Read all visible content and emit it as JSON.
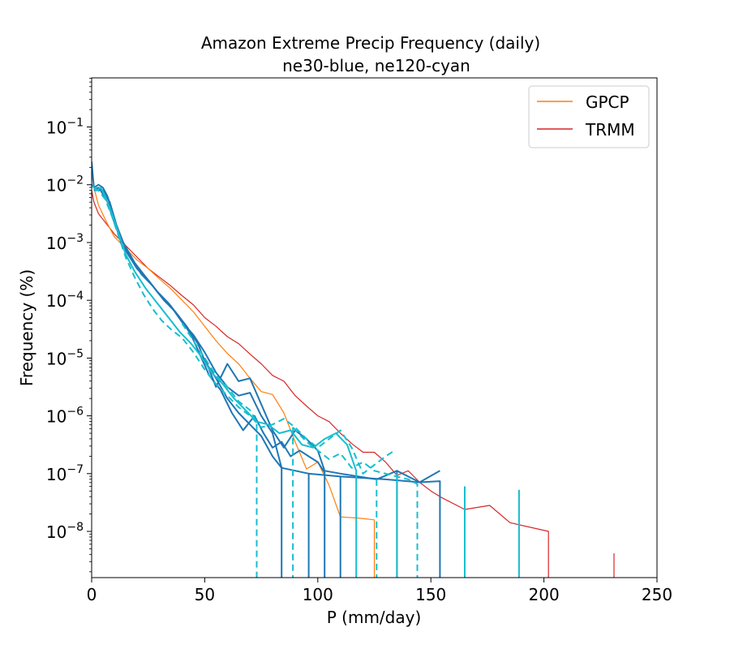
{
  "chart_data": {
    "type": "line",
    "title": [
      "Amazon Extreme Precip Frequency (daily)",
      "ne30-blue, ne120-cyan"
    ],
    "xlabel": "P (mm/day)",
    "ylabel": "Frequency (%)",
    "xlim": [
      0,
      250
    ],
    "ylim_log10": [
      -8.8,
      -0.15
    ],
    "yscale": "log",
    "xticks": [
      0,
      50,
      100,
      150,
      200,
      250
    ],
    "yticks": [
      {
        "base": "10",
        "exp": "−8",
        "log": -8
      },
      {
        "base": "10",
        "exp": "−7",
        "log": -7
      },
      {
        "base": "10",
        "exp": "−6",
        "log": -6
      },
      {
        "base": "10",
        "exp": "−5",
        "log": -5
      },
      {
        "base": "10",
        "exp": "−4",
        "log": -4
      },
      {
        "base": "10",
        "exp": "−3",
        "log": -3
      },
      {
        "base": "10",
        "exp": "−2",
        "log": -2
      },
      {
        "base": "10",
        "exp": "−1",
        "log": -1
      }
    ],
    "legend": {
      "position": "top-right",
      "entries": [
        {
          "label": "GPCP",
          "color": "#ff7f0e"
        },
        {
          "label": "TRMM",
          "color": "#d62728"
        }
      ]
    },
    "colors": {
      "GPCP": "#ff7f0e",
      "TRMM": "#d62728",
      "ne30": "#1f77b4",
      "ne120": "#17becf"
    },
    "series": [
      {
        "name": "TRMM",
        "color": "#d62728",
        "width": 1.2,
        "dash": "",
        "points": [
          [
            0,
            -2.1
          ],
          [
            1,
            -2.3
          ],
          [
            3,
            -2.5
          ],
          [
            6,
            -2.65
          ],
          [
            10,
            -2.85
          ],
          [
            15,
            -3.05
          ],
          [
            20,
            -3.25
          ],
          [
            25,
            -3.45
          ],
          [
            30,
            -3.6
          ],
          [
            35,
            -3.75
          ],
          [
            40,
            -3.92
          ],
          [
            45,
            -4.08
          ],
          [
            50,
            -4.3
          ],
          [
            55,
            -4.45
          ],
          [
            60,
            -4.63
          ],
          [
            65,
            -4.75
          ],
          [
            70,
            -4.93
          ],
          [
            75,
            -5.1
          ],
          [
            80,
            -5.3
          ],
          [
            85,
            -5.4
          ],
          [
            90,
            -5.65
          ],
          [
            95,
            -5.83
          ],
          [
            100,
            -6.0
          ],
          [
            105,
            -6.1
          ],
          [
            110,
            -6.3
          ],
          [
            115,
            -6.48
          ],
          [
            120,
            -6.63
          ],
          [
            125,
            -6.63
          ],
          [
            130,
            -6.8
          ],
          [
            135,
            -7.03
          ],
          [
            140,
            -6.95
          ],
          [
            145,
            -7.15
          ],
          [
            150,
            -7.3
          ],
          [
            155,
            -7.42
          ],
          [
            165,
            -7.62
          ],
          [
            176,
            -7.55
          ],
          [
            185,
            -7.85
          ],
          [
            202,
            -8.0
          ],
          [
            202,
            -8.8
          ]
        ]
      },
      {
        "name": "TRMM-tail",
        "color": "#d62728",
        "width": 1.2,
        "dash": "",
        "points": [
          [
            231,
            -8.38
          ],
          [
            231,
            -8.8
          ]
        ]
      },
      {
        "name": "GPCP",
        "color": "#ff7f0e",
        "width": 1.2,
        "dash": "",
        "points": [
          [
            0,
            -1.8
          ],
          [
            1,
            -2.05
          ],
          [
            3,
            -2.35
          ],
          [
            6,
            -2.6
          ],
          [
            10,
            -2.9
          ],
          [
            15,
            -3.1
          ],
          [
            20,
            -3.3
          ],
          [
            25,
            -3.45
          ],
          [
            30,
            -3.63
          ],
          [
            35,
            -3.8
          ],
          [
            40,
            -4.0
          ],
          [
            45,
            -4.2
          ],
          [
            50,
            -4.45
          ],
          [
            55,
            -4.7
          ],
          [
            60,
            -4.92
          ],
          [
            65,
            -5.1
          ],
          [
            70,
            -5.35
          ],
          [
            75,
            -5.58
          ],
          [
            80,
            -5.63
          ],
          [
            85,
            -5.95
          ],
          [
            90,
            -6.45
          ],
          [
            95,
            -6.92
          ],
          [
            100,
            -6.8
          ],
          [
            105,
            -7.2
          ],
          [
            110,
            -7.75
          ],
          [
            118,
            -7.77
          ],
          [
            125,
            -7.8
          ],
          [
            125,
            -8.8
          ]
        ]
      },
      {
        "name": "ne30-a",
        "color": "#1f77b4",
        "width": 2,
        "dash": "",
        "points": [
          [
            0,
            -1.6
          ],
          [
            1,
            -2.05
          ],
          [
            3,
            -2.0
          ],
          [
            5,
            -2.05
          ],
          [
            7,
            -2.2
          ],
          [
            9,
            -2.45
          ],
          [
            11,
            -2.75
          ],
          [
            13,
            -3.0
          ],
          [
            16,
            -3.2
          ],
          [
            20,
            -3.45
          ],
          [
            25,
            -3.65
          ],
          [
            30,
            -3.9
          ],
          [
            35,
            -4.1
          ],
          [
            40,
            -4.38
          ],
          [
            45,
            -4.6
          ],
          [
            50,
            -4.9
          ],
          [
            55,
            -5.25
          ],
          [
            60,
            -5.5
          ],
          [
            65,
            -5.65
          ],
          [
            70,
            -5.6
          ],
          [
            75,
            -6.0
          ],
          [
            80,
            -6.3
          ],
          [
            84,
            -6.9
          ],
          [
            84,
            -8.8
          ]
        ]
      },
      {
        "name": "ne30-b",
        "color": "#1f77b4",
        "width": 2,
        "dash": "",
        "points": [
          [
            1,
            -2.1
          ],
          [
            3,
            -2.05
          ],
          [
            5,
            -2.1
          ],
          [
            8,
            -2.3
          ],
          [
            11,
            -2.7
          ],
          [
            14,
            -3.0
          ],
          [
            18,
            -3.3
          ],
          [
            22,
            -3.55
          ],
          [
            27,
            -3.75
          ],
          [
            32,
            -4.0
          ],
          [
            37,
            -4.2
          ],
          [
            42,
            -4.45
          ],
          [
            47,
            -4.75
          ],
          [
            50,
            -5.05
          ],
          [
            55,
            -5.35
          ],
          [
            60,
            -5.7
          ],
          [
            65,
            -5.95
          ],
          [
            70,
            -6.15
          ],
          [
            75,
            -6.35
          ],
          [
            80,
            -6.7
          ],
          [
            84,
            -6.9
          ],
          [
            96,
            -7.0
          ],
          [
            110,
            -7.05
          ],
          [
            130,
            -7.1
          ],
          [
            145,
            -7.15
          ],
          [
            154,
            -7.13
          ],
          [
            154,
            -8.8
          ]
        ]
      },
      {
        "name": "ne30-c",
        "color": "#1f77b4",
        "width": 2,
        "dash": "",
        "points": [
          [
            2,
            -2.05
          ],
          [
            4,
            -2.1
          ],
          [
            7,
            -2.3
          ],
          [
            10,
            -2.65
          ],
          [
            14,
            -3.0
          ],
          [
            19,
            -3.35
          ],
          [
            24,
            -3.6
          ],
          [
            29,
            -3.85
          ],
          [
            34,
            -4.05
          ],
          [
            39,
            -4.3
          ],
          [
            44,
            -4.6
          ],
          [
            48,
            -4.95
          ],
          [
            52,
            -5.3
          ],
          [
            57,
            -5.55
          ],
          [
            62,
            -5.95
          ],
          [
            67,
            -6.25
          ],
          [
            72,
            -6.0
          ],
          [
            76,
            -6.3
          ],
          [
            80,
            -6.55
          ],
          [
            84,
            -6.45
          ],
          [
            88,
            -6.7
          ],
          [
            92,
            -6.6
          ],
          [
            96,
            -6.7
          ],
          [
            100,
            -6.8
          ],
          [
            103,
            -6.98
          ],
          [
            103,
            -8.8
          ]
        ]
      },
      {
        "name": "ne30-d",
        "color": "#1f77b4",
        "width": 2,
        "dash": "",
        "points": [
          [
            50,
            -5.0
          ],
          [
            55,
            -5.5
          ],
          [
            60,
            -5.1
          ],
          [
            65,
            -5.4
          ],
          [
            70,
            -5.35
          ],
          [
            75,
            -5.8
          ],
          [
            80,
            -6.25
          ],
          [
            85,
            -6.55
          ],
          [
            90,
            -6.25
          ],
          [
            95,
            -6.4
          ],
          [
            100,
            -6.6
          ],
          [
            103,
            -6.95
          ],
          [
            110,
            -7.0
          ],
          [
            118,
            -7.05
          ],
          [
            126,
            -7.1
          ],
          [
            135,
            -6.95
          ],
          [
            140,
            -7.05
          ],
          [
            145,
            -7.15
          ],
          [
            154,
            -6.95
          ]
        ]
      },
      {
        "name": "ne30-drops",
        "color": "#1f77b4",
        "width": 2,
        "dash": "",
        "points": [
          [
            96,
            -7.0
          ],
          [
            96,
            -8.8
          ]
        ]
      },
      {
        "name": "ne30-drop-110",
        "color": "#1f77b4",
        "width": 2,
        "dash": "",
        "points": [
          [
            110,
            -7.05
          ],
          [
            110,
            -8.8
          ]
        ]
      },
      {
        "name": "ne30-drop-135",
        "color": "#1f77b4",
        "width": 2,
        "dash": "",
        "points": [
          [
            135,
            -6.95
          ],
          [
            135,
            -8.8
          ]
        ]
      },
      {
        "name": "ne120-a",
        "color": "#17becf",
        "width": 2,
        "dash": "",
        "points": [
          [
            0,
            -2.0
          ],
          [
            2,
            -2.1
          ],
          [
            4,
            -2.05
          ],
          [
            6,
            -2.2
          ],
          [
            9,
            -2.5
          ],
          [
            12,
            -2.85
          ],
          [
            15,
            -3.2
          ],
          [
            19,
            -3.5
          ],
          [
            24,
            -3.8
          ],
          [
            29,
            -4.05
          ],
          [
            34,
            -4.3
          ],
          [
            39,
            -4.55
          ],
          [
            44,
            -4.75
          ],
          [
            48,
            -4.95
          ],
          [
            53,
            -5.25
          ],
          [
            58,
            -5.45
          ],
          [
            63,
            -5.7
          ],
          [
            68,
            -5.9
          ],
          [
            73,
            -6.1
          ],
          [
            78,
            -6.15
          ],
          [
            83,
            -6.3
          ],
          [
            88,
            -6.25
          ],
          [
            93,
            -6.5
          ],
          [
            98,
            -6.55
          ],
          [
            103,
            -6.4
          ],
          [
            108,
            -6.3
          ],
          [
            113,
            -6.5
          ],
          [
            117,
            -6.95
          ],
          [
            117,
            -8.8
          ]
        ]
      },
      {
        "name": "ne120-b",
        "color": "#17becf",
        "width": 2,
        "dash": "8,5",
        "points": [
          [
            1,
            -2.05
          ],
          [
            3,
            -2.1
          ],
          [
            6,
            -2.25
          ],
          [
            9,
            -2.55
          ],
          [
            12,
            -2.9
          ],
          [
            15,
            -3.25
          ],
          [
            19,
            -3.6
          ],
          [
            23,
            -3.9
          ],
          [
            27,
            -4.15
          ],
          [
            31,
            -4.35
          ],
          [
            35,
            -4.5
          ],
          [
            40,
            -4.65
          ],
          [
            45,
            -4.9
          ],
          [
            50,
            -5.2
          ],
          [
            55,
            -5.45
          ],
          [
            60,
            -5.65
          ],
          [
            65,
            -5.85
          ],
          [
            70,
            -6.0
          ],
          [
            75,
            -6.2
          ],
          [
            80,
            -6.15
          ],
          [
            85,
            -6.05
          ],
          [
            90,
            -6.2
          ],
          [
            95,
            -6.4
          ],
          [
            100,
            -6.55
          ],
          [
            105,
            -6.4
          ],
          [
            110,
            -6.25
          ],
          [
            115,
            -6.55
          ],
          [
            120,
            -7.0
          ],
          [
            125,
            -6.85
          ],
          [
            130,
            -6.7
          ],
          [
            134,
            -6.6
          ]
        ]
      },
      {
        "name": "ne120-c",
        "color": "#17becf",
        "width": 2,
        "dash": "8,5",
        "points": [
          [
            40,
            -4.4
          ],
          [
            45,
            -4.7
          ],
          [
            50,
            -5.0
          ],
          [
            55,
            -5.3
          ],
          [
            60,
            -5.5
          ],
          [
            65,
            -5.75
          ],
          [
            70,
            -5.9
          ],
          [
            73,
            -6.1
          ],
          [
            73,
            -8.8
          ]
        ]
      },
      {
        "name": "ne120-d",
        "color": "#17becf",
        "width": 2,
        "dash": "8,5",
        "points": [
          [
            89,
            -6.2
          ],
          [
            95,
            -6.45
          ],
          [
            100,
            -6.6
          ],
          [
            105,
            -6.75
          ],
          [
            110,
            -6.65
          ],
          [
            115,
            -6.9
          ],
          [
            120,
            -6.8
          ],
          [
            125,
            -6.95
          ],
          [
            130,
            -7.0
          ],
          [
            135,
            -7.05
          ],
          [
            140,
            -7.1
          ],
          [
            144,
            -7.18
          ],
          [
            144,
            -8.8
          ]
        ]
      },
      {
        "name": "ne120-drop-89",
        "color": "#17becf",
        "width": 2,
        "dash": "8,5",
        "points": [
          [
            89,
            -6.2
          ],
          [
            89,
            -8.8
          ]
        ]
      },
      {
        "name": "ne120-drop-126",
        "color": "#17becf",
        "width": 2,
        "dash": "8,5",
        "points": [
          [
            126,
            -7.1
          ],
          [
            126,
            -8.8
          ]
        ]
      },
      {
        "name": "ne120-drop-165",
        "color": "#17becf",
        "width": 2,
        "dash": "8,5",
        "points": [
          [
            165,
            -7.22
          ],
          [
            165,
            -8.8
          ]
        ]
      },
      {
        "name": "ne120-drop-165-solid",
        "color": "#17becf",
        "width": 2,
        "dash": "",
        "points": [
          [
            165,
            -7.25
          ],
          [
            165,
            -8.8
          ]
        ]
      },
      {
        "name": "ne120-drop-189",
        "color": "#17becf",
        "width": 2,
        "dash": "",
        "points": [
          [
            189,
            -7.28
          ],
          [
            189,
            -8.8
          ]
        ]
      },
      {
        "name": "ne120-drop-135",
        "color": "#17becf",
        "width": 2,
        "dash": "",
        "points": [
          [
            135,
            -7.0
          ],
          [
            135,
            -8.8
          ]
        ]
      }
    ]
  }
}
